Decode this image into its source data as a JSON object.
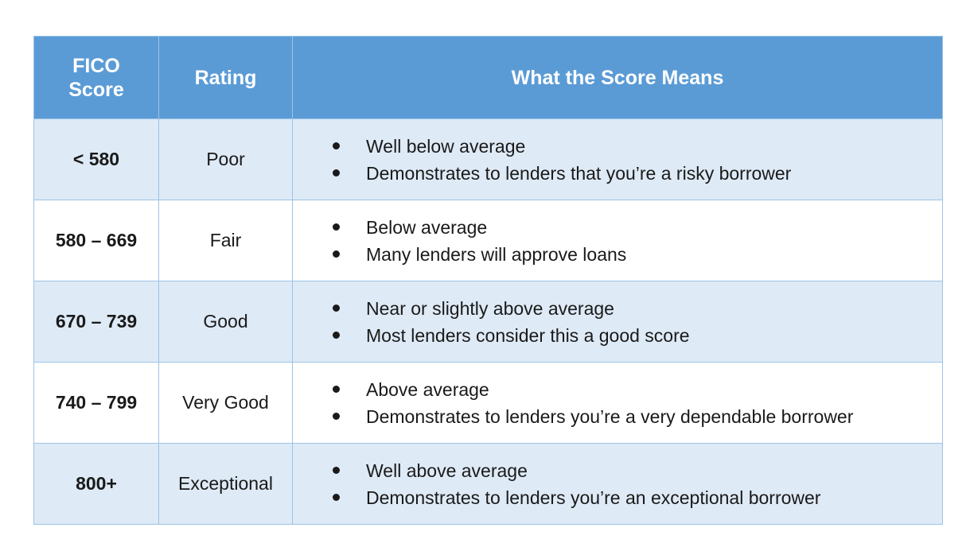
{
  "header": {
    "col1_line1": "FICO",
    "col1_line2": "Score",
    "col2": "Rating",
    "col3": "What the Score Means"
  },
  "rows": [
    {
      "score": "< 580",
      "rating": "Poor",
      "means": [
        "Well below average",
        "Demonstrates to lenders that you’re a risky borrower"
      ]
    },
    {
      "score": "580 – 669",
      "rating": "Fair",
      "means": [
        "Below average",
        "Many lenders will approve loans"
      ]
    },
    {
      "score": "670 – 739",
      "rating": "Good",
      "means": [
        "Near or slightly above average",
        "Most lenders consider this a good score"
      ]
    },
    {
      "score": "740 – 799",
      "rating": "Very Good",
      "means": [
        "Above average",
        "Demonstrates to lenders you’re a very dependable borrower"
      ]
    },
    {
      "score": "800+",
      "rating": "Exceptional",
      "means": [
        "Well above average",
        "Demonstrates to lenders you’re an exceptional borrower"
      ]
    }
  ],
  "colors": {
    "header_bg": "#5b9bd5",
    "band_bg": "#deeaf6",
    "border": "#9dc3e6"
  }
}
